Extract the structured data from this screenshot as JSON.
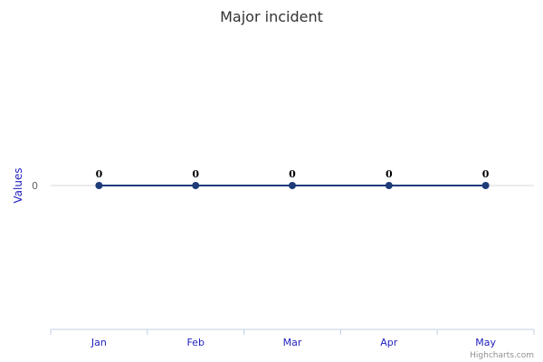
{
  "chart_data": {
    "type": "line",
    "title": "Major incident",
    "ylabel": "Values",
    "xlabel": "",
    "categories": [
      "Jan",
      "Feb",
      "Mar",
      "Apr",
      "May"
    ],
    "series": [
      {
        "values": [
          0,
          0,
          0,
          0,
          0
        ],
        "color": "#1f3c78"
      }
    ],
    "yticks": [
      "0"
    ],
    "ylim": [
      -1,
      1
    ],
    "grid": true,
    "legend": "none",
    "data_labels": true
  },
  "credits": "Highcharts.com"
}
